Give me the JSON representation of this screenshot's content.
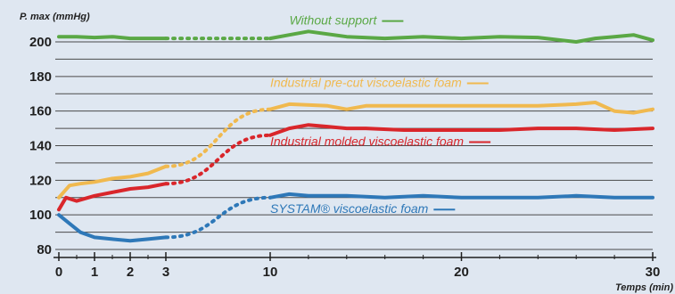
{
  "chart_data": {
    "type": "line",
    "ylabel": "P. max  (mmHg)",
    "xlabel": "Temps (min)",
    "ylim": [
      80,
      200
    ],
    "y_ticks": [
      80,
      100,
      120,
      140,
      160,
      180,
      200
    ],
    "x_ticks": [
      {
        "value": 0,
        "label": "0"
      },
      {
        "value": 1,
        "label": "1"
      },
      {
        "value": 2,
        "label": "2"
      },
      {
        "value": 3,
        "label": "3"
      },
      {
        "value": 10,
        "label": "10"
      },
      {
        "value": 20,
        "label": "20"
      },
      {
        "value": 30,
        "label": "30"
      }
    ],
    "grid": true,
    "x_axis_note": "broken time axis: 0–3 min expanded, 3–10 min compressed (dotted segment)",
    "series": [
      {
        "name": "Without support",
        "color": "#5aa845",
        "points": [
          [
            0,
            203
          ],
          [
            0.5,
            203
          ],
          [
            1,
            202.5
          ],
          [
            1.5,
            203
          ],
          [
            2,
            202
          ],
          [
            2.5,
            202
          ],
          [
            3,
            202
          ],
          [
            10,
            202
          ],
          [
            11,
            204
          ],
          [
            12,
            206
          ],
          [
            14,
            203
          ],
          [
            16,
            202
          ],
          [
            18,
            203
          ],
          [
            20,
            202
          ],
          [
            22,
            203
          ],
          [
            24,
            202.5
          ],
          [
            26,
            200
          ],
          [
            27,
            202
          ],
          [
            28,
            203
          ],
          [
            29,
            204
          ],
          [
            30,
            201
          ]
        ],
        "dotted_between": [
          3,
          10
        ]
      },
      {
        "name": "Industrial pre-cut viscoelastic foam",
        "color": "#f0b94f",
        "points": [
          [
            0,
            110
          ],
          [
            0.3,
            117
          ],
          [
            0.6,
            118
          ],
          [
            1,
            119
          ],
          [
            1.5,
            121
          ],
          [
            2,
            122
          ],
          [
            2.5,
            124
          ],
          [
            3,
            128
          ],
          [
            10,
            161
          ],
          [
            11,
            164
          ],
          [
            13,
            163
          ],
          [
            14,
            161
          ],
          [
            15,
            163
          ],
          [
            17,
            163
          ],
          [
            20,
            163
          ],
          [
            22,
            163
          ],
          [
            24,
            163
          ],
          [
            26,
            164
          ],
          [
            27,
            165
          ],
          [
            28,
            160
          ],
          [
            29,
            159
          ],
          [
            30,
            161
          ]
        ],
        "dotted_between": [
          3,
          10
        ]
      },
      {
        "name": "Industrial molded viscoelastic foam",
        "color": "#d9262b",
        "points": [
          [
            0,
            103
          ],
          [
            0.2,
            110
          ],
          [
            0.5,
            108
          ],
          [
            1,
            111
          ],
          [
            1.5,
            113
          ],
          [
            2,
            115
          ],
          [
            2.5,
            116
          ],
          [
            3,
            118
          ],
          [
            10,
            146
          ],
          [
            11,
            150
          ],
          [
            12,
            152
          ],
          [
            13,
            151
          ],
          [
            14,
            150
          ],
          [
            15,
            150
          ],
          [
            17,
            149
          ],
          [
            20,
            149
          ],
          [
            22,
            149
          ],
          [
            24,
            150
          ],
          [
            26,
            150
          ],
          [
            28,
            149
          ],
          [
            30,
            150
          ]
        ],
        "dotted_between": [
          3,
          10
        ]
      },
      {
        "name": "SYSTAM® viscoelastic foam",
        "color": "#2e78b8",
        "points": [
          [
            0,
            100
          ],
          [
            0.3,
            95
          ],
          [
            0.6,
            90
          ],
          [
            1,
            87
          ],
          [
            1.5,
            86
          ],
          [
            2,
            85
          ],
          [
            2.5,
            86
          ],
          [
            3,
            87
          ],
          [
            10,
            110
          ],
          [
            11,
            112
          ],
          [
            12,
            111
          ],
          [
            14,
            111
          ],
          [
            16,
            110
          ],
          [
            18,
            111
          ],
          [
            20,
            110
          ],
          [
            22,
            110
          ],
          [
            24,
            110
          ],
          [
            26,
            111
          ],
          [
            28,
            110
          ],
          [
            30,
            110
          ]
        ],
        "dotted_between": [
          3,
          10
        ]
      }
    ],
    "annotations": [
      {
        "series": 0,
        "text": "Without support",
        "color": "#5aa845",
        "at_x": 11,
        "at_y": 210
      },
      {
        "series": 1,
        "text": "Industrial pre-cut viscoelastic foam",
        "color": "#f0b94f",
        "at_x": 10,
        "at_y": 174
      },
      {
        "series": 2,
        "text": "Industrial molded viscoelastic foam",
        "color": "#d9262b",
        "at_x": 10,
        "at_y": 140
      },
      {
        "series": 3,
        "text": "SYSTAM® viscoelastic foam",
        "color": "#2e78b8",
        "at_x": 10,
        "at_y": 101
      }
    ]
  }
}
